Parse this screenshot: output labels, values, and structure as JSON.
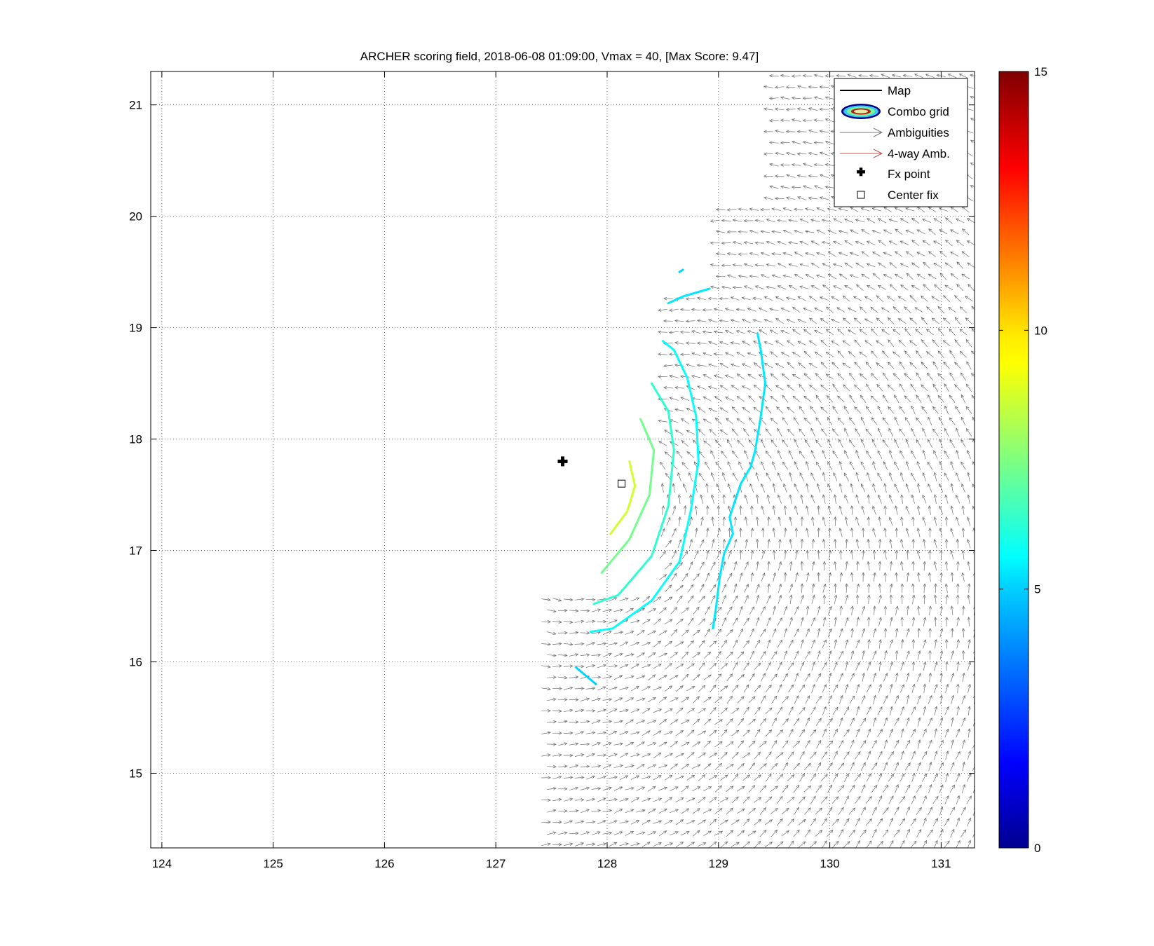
{
  "chart_data": {
    "type": "scatter",
    "title": "ARCHER scoring field, 2018-06-08 01:09:00, Vmax = 40, [Max Score: 9.47]",
    "xlabel": "",
    "ylabel": "",
    "xlim": [
      123.9,
      131.3
    ],
    "ylim": [
      14.33,
      21.3
    ],
    "x_ticks": [
      "124",
      "125",
      "126",
      "127",
      "128",
      "129",
      "130",
      "131"
    ],
    "y_ticks": [
      "15",
      "16",
      "17",
      "18",
      "19",
      "20",
      "21"
    ],
    "grid": true,
    "legend_position": "top-right",
    "legend": [
      {
        "label": "Map",
        "symbol": "line",
        "color": "#000000"
      },
      {
        "label": "Combo grid",
        "symbol": "ellipses",
        "color": "#00008b"
      },
      {
        "label": "Ambiguities",
        "symbol": "arrow",
        "color": "#777777"
      },
      {
        "label": "4-way Amb.",
        "symbol": "arrow",
        "color": "#c0504d"
      },
      {
        "label": "Fx point",
        "symbol": "plus",
        "color": "#000000"
      },
      {
        "label": "Center fix",
        "symbol": "square",
        "color": "#000000"
      }
    ],
    "points": {
      "fx_point": {
        "x": 127.6,
        "y": 17.8
      },
      "center_fix": {
        "x": 128.13,
        "y": 17.6
      }
    },
    "colorbar": {
      "min": 0,
      "max": 15,
      "tick_labels": [
        "0",
        "5",
        "10",
        "15"
      ],
      "colormap": "jet"
    },
    "contours": [
      {
        "level": 5.0,
        "points": [
          [
            127.72,
            15.95
          ],
          [
            127.9,
            15.8
          ]
        ]
      },
      {
        "level": 5.0,
        "points": [
          [
            128.65,
            19.5
          ],
          [
            128.68,
            19.52
          ]
        ]
      },
      {
        "level": 5.3,
        "points": [
          [
            128.55,
            19.22
          ],
          [
            128.68,
            19.28
          ],
          [
            128.92,
            19.35
          ]
        ]
      },
      {
        "level": 5.3,
        "points": [
          [
            129.35,
            18.95
          ],
          [
            129.38,
            18.8
          ],
          [
            129.42,
            18.5
          ],
          [
            129.38,
            18.2
          ],
          [
            129.33,
            17.9
          ],
          [
            129.29,
            17.75
          ],
          [
            129.2,
            17.6
          ],
          [
            129.1,
            17.3
          ],
          [
            129.13,
            17.15
          ],
          [
            129.05,
            16.97
          ],
          [
            129.01,
            16.75
          ],
          [
            128.98,
            16.5
          ],
          [
            128.95,
            16.3
          ]
        ]
      },
      {
        "level": 5.7,
        "points": [
          [
            128.5,
            18.88
          ],
          [
            128.6,
            18.8
          ],
          [
            128.72,
            18.55
          ],
          [
            128.8,
            18.2
          ],
          [
            128.82,
            17.8
          ],
          [
            128.75,
            17.35
          ],
          [
            128.65,
            16.9
          ],
          [
            128.4,
            16.55
          ],
          [
            128.05,
            16.3
          ],
          [
            127.85,
            16.27
          ]
        ]
      },
      {
        "level": 6.3,
        "points": [
          [
            128.4,
            18.5
          ],
          [
            128.55,
            18.25
          ],
          [
            128.6,
            17.9
          ],
          [
            128.55,
            17.4
          ],
          [
            128.4,
            16.95
          ],
          [
            128.1,
            16.6
          ],
          [
            127.88,
            16.52
          ]
        ]
      },
      {
        "level": 7.3,
        "points": [
          [
            128.3,
            18.18
          ],
          [
            128.42,
            17.9
          ],
          [
            128.38,
            17.5
          ],
          [
            128.2,
            17.1
          ],
          [
            127.95,
            16.8
          ]
        ]
      },
      {
        "level": 8.7,
        "points": [
          [
            128.2,
            17.8
          ],
          [
            128.25,
            17.58
          ],
          [
            128.18,
            17.35
          ],
          [
            128.03,
            17.15
          ]
        ]
      }
    ],
    "wind_field": {
      "description": "Ambiguity wind vectors",
      "regions": [
        {
          "lat_range": [
            14.33,
            16.6
          ],
          "lon_start": 127.45
        },
        {
          "lat_range": [
            16.6,
            19.3
          ],
          "lon_start": 128.5
        },
        {
          "lat_range": [
            19.3,
            20.15
          ],
          "lon_start": 128.97
        },
        {
          "lat_range": [
            20.15,
            21.3
          ],
          "lon_start": 129.45
        }
      ],
      "lon_end": 131.3
    }
  }
}
